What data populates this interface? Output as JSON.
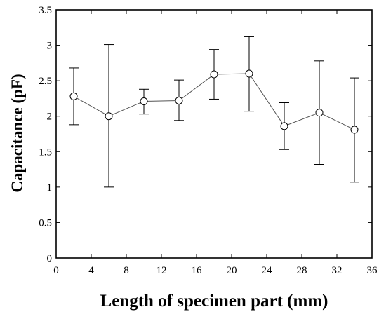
{
  "chart_data": {
    "type": "line",
    "title": "",
    "xlabel": "Length of specimen part (mm)",
    "ylabel": "Capacitance (pF)",
    "xlim": [
      0,
      36
    ],
    "ylim": [
      0,
      3.5
    ],
    "xticks": [
      0,
      4,
      8,
      12,
      16,
      20,
      24,
      28,
      32,
      36
    ],
    "yticks": [
      0,
      0.5,
      1,
      1.5,
      2,
      2.5,
      3,
      3.5
    ],
    "xtick_labels": [
      "0",
      "4",
      "8",
      "12",
      "16",
      "20",
      "24",
      "28",
      "32",
      "36"
    ],
    "ytick_labels": [
      "0",
      "0.5",
      "1",
      "1.5",
      "2",
      "2.5",
      "3",
      "3.5"
    ],
    "grid": false,
    "legend": "none",
    "series": [
      {
        "x": [
          2,
          6,
          10,
          14,
          18,
          22,
          26,
          30,
          34
        ],
        "y": [
          2.28,
          2.0,
          2.21,
          2.22,
          2.59,
          2.6,
          1.86,
          2.05,
          1.81
        ],
        "error_upper": [
          2.68,
          3.01,
          2.38,
          2.51,
          2.94,
          3.12,
          2.19,
          2.78,
          2.54
        ],
        "error_lower": [
          1.88,
          1.0,
          2.03,
          1.94,
          2.24,
          2.07,
          1.53,
          1.32,
          1.07
        ],
        "marker": "open-circle",
        "color": "#000000"
      }
    ]
  }
}
